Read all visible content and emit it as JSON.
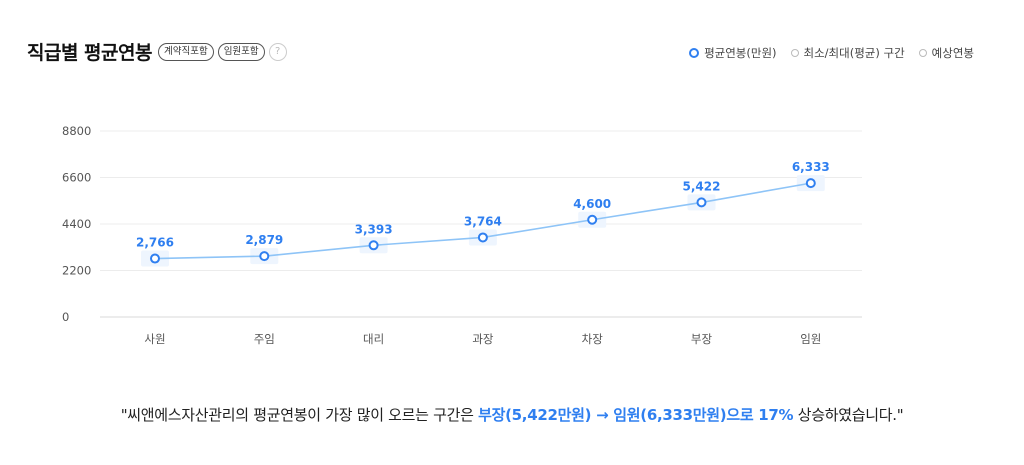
{
  "header": {
    "title": "직급별 평균연봉",
    "tags": [
      "계약직포함",
      "임원포함"
    ],
    "help_label": "?"
  },
  "legend": [
    {
      "label": "평균연봉(만원)",
      "active": true
    },
    {
      "label": "최소/최대(평균) 구간",
      "active": false
    },
    {
      "label": "예상연봉",
      "active": false
    }
  ],
  "colors": {
    "accent": "#2f7ff0",
    "line": "#8ec4f7",
    "grid": "#ececec"
  },
  "chart_data": {
    "type": "line",
    "categories": [
      "사원",
      "주임",
      "대리",
      "과장",
      "차장",
      "부장",
      "임원"
    ],
    "series": [
      {
        "name": "평균연봉(만원)",
        "values": [
          2766,
          2879,
          3393,
          3764,
          4600,
          5422,
          6333
        ]
      }
    ],
    "data_labels": [
      "2,766",
      "2,879",
      "3,393",
      "3,764",
      "4,600",
      "5,422",
      "6,333"
    ],
    "yticks": [
      0,
      2200,
      4400,
      6600,
      8800
    ],
    "ylim": [
      0,
      8800
    ],
    "grid": true,
    "legend_position": "top-right"
  },
  "summary": {
    "prefix": "\"씨앤에스자산관리의 평균연봉이 가장 많이 오르는 구간은 ",
    "highlight": "부장(5,422만원) → 임원(6,333만원)으로 17%",
    "suffix": " 상승하였습니다.\""
  }
}
